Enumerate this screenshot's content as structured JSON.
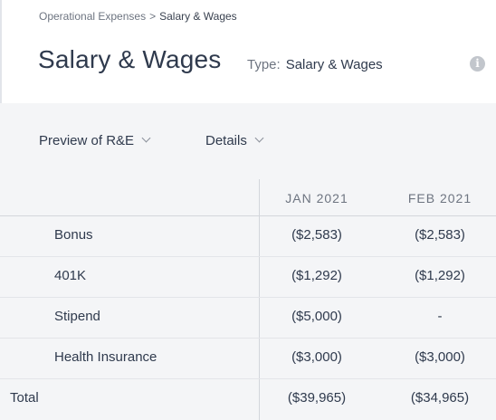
{
  "breadcrumb": {
    "parent": "Operational Expenses",
    "separator": ">",
    "current": "Salary & Wages"
  },
  "header": {
    "title": "Salary & Wages",
    "type_label": "Type:",
    "type_value": "Salary & Wages",
    "info_icon": "info-icon"
  },
  "controls": {
    "preview_label": "Preview of R&E",
    "details_label": "Details"
  },
  "table": {
    "columns": [
      "JAN 2021",
      "FEB 2021"
    ],
    "rows": [
      {
        "label": "Bonus",
        "values": [
          "($2,583)",
          "($2,583)"
        ]
      },
      {
        "label": "401K",
        "values": [
          "($1,292)",
          "($1,292)"
        ]
      },
      {
        "label": "Stipend",
        "values": [
          "($5,000)",
          "-"
        ]
      },
      {
        "label": "Health Insurance",
        "values": [
          "($3,000)",
          "($3,000)"
        ]
      }
    ],
    "total": {
      "label": "Total",
      "values": [
        "($39,965)",
        "($34,965)"
      ]
    }
  },
  "colors": {
    "background": "#f4f5f7",
    "text": "#2f3a4d",
    "muted": "#6d7480",
    "divider": "#d3d6db"
  }
}
